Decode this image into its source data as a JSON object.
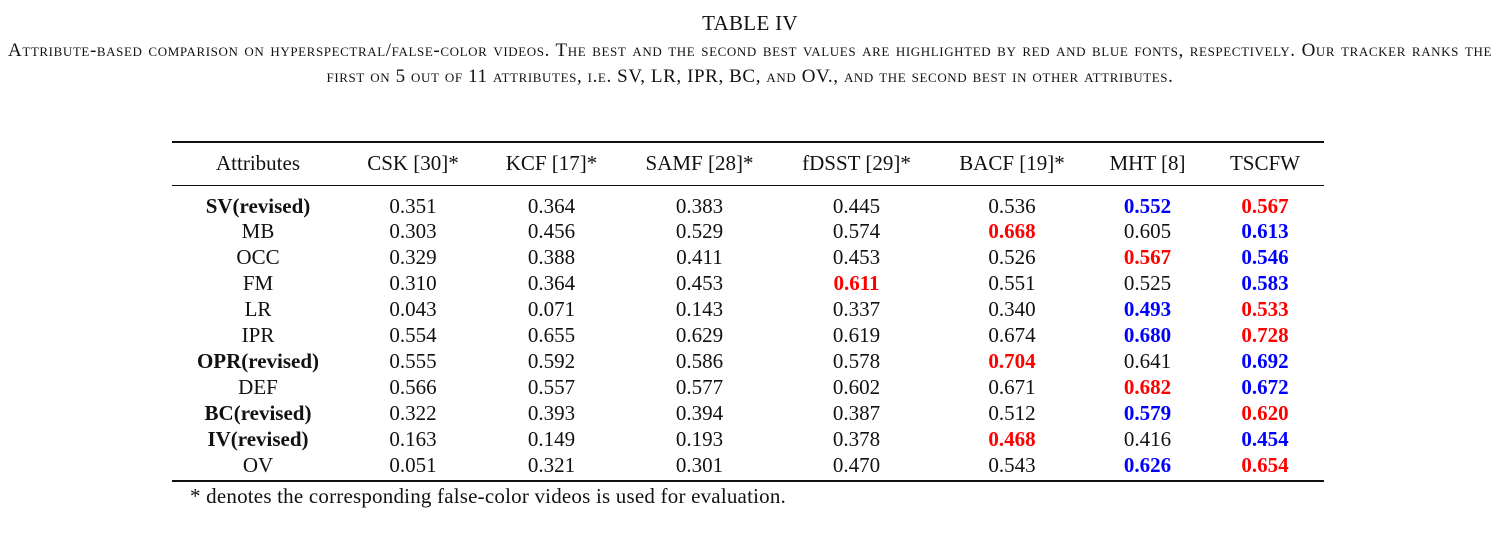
{
  "table_label": "TABLE IV",
  "caption": "Attribute-based comparison on hyperspectral/false-color videos. The best and the second best values are highlighted by red and blue fonts, respectively. Our tracker ranks the first on 5 out of 11 attributes, i.e. SV, LR, IPR, BC, and OV., and the second best in other attributes.",
  "columns": [
    "Attributes",
    "CSK [30]*",
    "KCF [17]*",
    "SAMF [28]*",
    "fDSST [29]*",
    "BACF [19]*",
    "MHT [8]",
    "TSCFW"
  ],
  "rows": [
    {
      "attribute": "SV(revised)",
      "bold": true,
      "values": [
        "0.351",
        "0.364",
        "0.383",
        "0.445",
        "0.536",
        "0.552",
        "0.567"
      ],
      "rank": [
        "",
        "",
        "",
        "",
        "",
        "second",
        "best"
      ]
    },
    {
      "attribute": "MB",
      "bold": false,
      "values": [
        "0.303",
        "0.456",
        "0.529",
        "0.574",
        "0.668",
        "0.605",
        "0.613"
      ],
      "rank": [
        "",
        "",
        "",
        "",
        "best",
        "",
        "second"
      ]
    },
    {
      "attribute": "OCC",
      "bold": false,
      "values": [
        "0.329",
        "0.388",
        "0.411",
        "0.453",
        "0.526",
        "0.567",
        "0.546"
      ],
      "rank": [
        "",
        "",
        "",
        "",
        "",
        "best",
        "second"
      ]
    },
    {
      "attribute": "FM",
      "bold": false,
      "values": [
        "0.310",
        "0.364",
        "0.453",
        "0.611",
        "0.551",
        "0.525",
        "0.583"
      ],
      "rank": [
        "",
        "",
        "",
        "best",
        "",
        "",
        "second"
      ]
    },
    {
      "attribute": "LR",
      "bold": false,
      "values": [
        "0.043",
        "0.071",
        "0.143",
        "0.337",
        "0.340",
        "0.493",
        "0.533"
      ],
      "rank": [
        "",
        "",
        "",
        "",
        "",
        "second",
        "best"
      ]
    },
    {
      "attribute": "IPR",
      "bold": false,
      "values": [
        "0.554",
        "0.655",
        "0.629",
        "0.619",
        "0.674",
        "0.680",
        "0.728"
      ],
      "rank": [
        "",
        "",
        "",
        "",
        "",
        "second",
        "best"
      ]
    },
    {
      "attribute": "OPR(revised)",
      "bold": true,
      "values": [
        "0.555",
        "0.592",
        "0.586",
        "0.578",
        "0.704",
        "0.641",
        "0.692"
      ],
      "rank": [
        "",
        "",
        "",
        "",
        "best",
        "",
        "second"
      ]
    },
    {
      "attribute": "DEF",
      "bold": false,
      "values": [
        "0.566",
        "0.557",
        "0.577",
        "0.602",
        "0.671",
        "0.682",
        "0.672"
      ],
      "rank": [
        "",
        "",
        "",
        "",
        "",
        "best",
        "second"
      ]
    },
    {
      "attribute": "BC(revised)",
      "bold": true,
      "values": [
        "0.322",
        "0.393",
        "0.394",
        "0.387",
        "0.512",
        "0.579",
        "0.620"
      ],
      "rank": [
        "",
        "",
        "",
        "",
        "",
        "second",
        "best"
      ]
    },
    {
      "attribute": "IV(revised)",
      "bold": true,
      "values": [
        "0.163",
        "0.149",
        "0.193",
        "0.378",
        "0.468",
        "0.416",
        "0.454"
      ],
      "rank": [
        "",
        "",
        "",
        "",
        "best",
        "",
        "second"
      ]
    },
    {
      "attribute": "OV",
      "bold": false,
      "values": [
        "0.051",
        "0.321",
        "0.301",
        "0.470",
        "0.543",
        "0.626",
        "0.654"
      ],
      "rank": [
        "",
        "",
        "",
        "",
        "",
        "second",
        "best"
      ]
    }
  ],
  "highlight_colors": {
    "best": "#ff0000",
    "second": "#0000ff"
  },
  "footnote": "* denotes the corresponding false-color videos is used for evaluation."
}
